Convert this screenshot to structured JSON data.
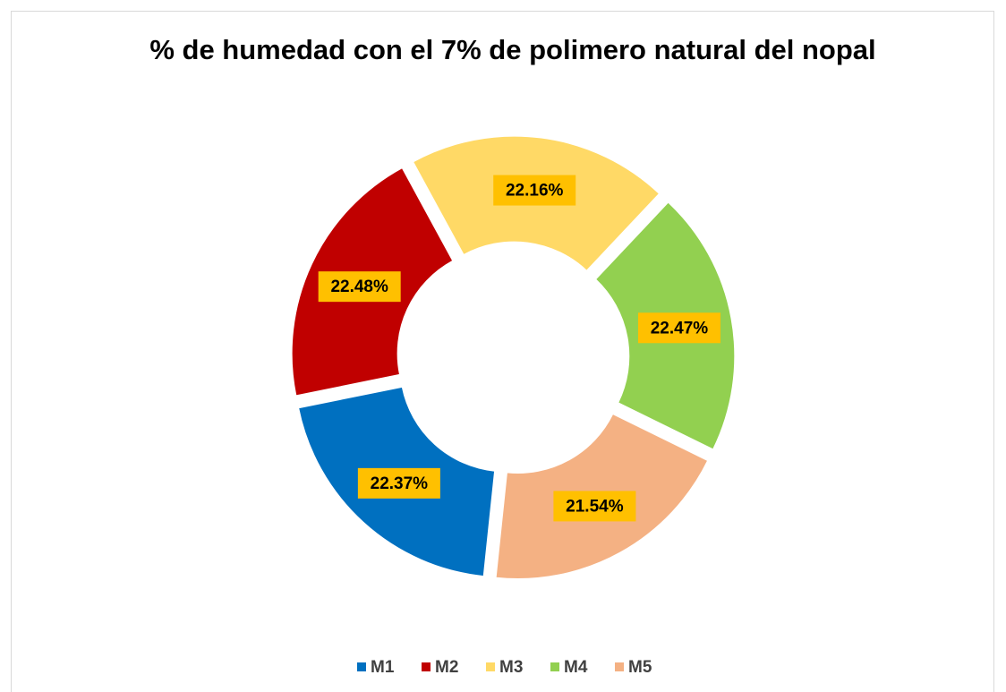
{
  "chart_data": {
    "type": "donut",
    "title": "% de humedad con el 7% de polimero natural del nopal",
    "categories": [
      "M1",
      "M2",
      "M3",
      "M4",
      "M5"
    ],
    "values": [
      22.37,
      22.48,
      22.16,
      22.47,
      21.54
    ],
    "value_labels": [
      "22.37%",
      "22.48%",
      "22.16%",
      "22.47%",
      "21.54%"
    ],
    "colors": [
      "#0070c0",
      "#c00000",
      "#ffd966",
      "#92d050",
      "#f4b183"
    ],
    "legend": "bottom"
  }
}
